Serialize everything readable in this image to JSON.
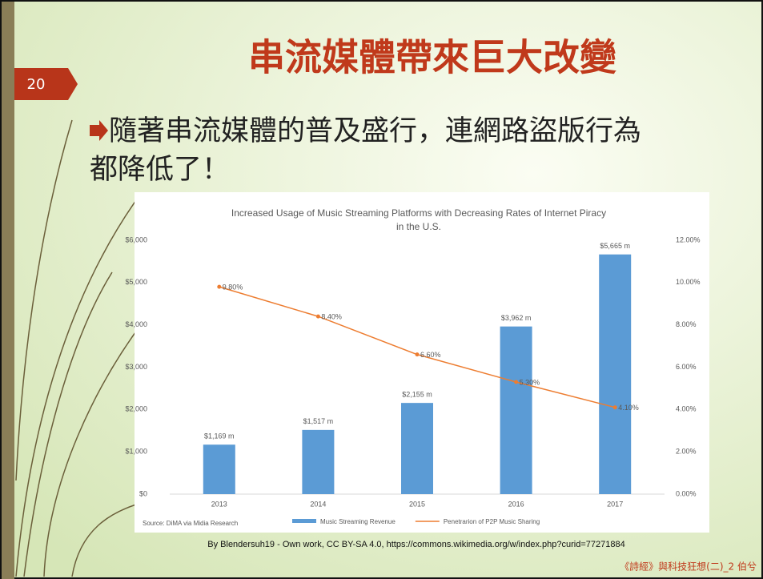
{
  "slide_number": "20",
  "title": "串流媒體帶來巨大改變",
  "bullet": [
    "隨著串流媒體的普及盛行，連網路盜版行為",
    "都降低了！"
  ],
  "chart_data": {
    "type": "bar",
    "title": [
      "Increased Usage of Music Streaming Platforms with Decreasing Rates of Internet Piracy",
      "in the U.S."
    ],
    "categories": [
      "2013",
      "2014",
      "2015",
      "2016",
      "2017"
    ],
    "series": [
      {
        "name": "Music Streaming Revenue",
        "type": "bar",
        "color": "#5b9bd5",
        "values": [
          1169,
          1517,
          2155,
          3962,
          5665
        ],
        "value_labels": [
          "$1,169 m",
          "$1,517 m",
          "$2,155 m",
          "$3,962 m",
          "$5,665 m"
        ]
      },
      {
        "name": "Penetrarion of P2P Music Sharing",
        "type": "line",
        "axis": "y2",
        "color": "#ed7d31",
        "values": [
          9.8,
          8.4,
          6.6,
          5.3,
          4.1
        ],
        "value_labels": [
          "9.80%",
          "8.40%",
          "6.60%",
          "5.30%",
          "4.10%"
        ]
      }
    ],
    "ylim": [
      0,
      6000
    ],
    "yticks": [
      {
        "value": 0,
        "label": "$0"
      },
      {
        "value": 1000,
        "label": "$1,000"
      },
      {
        "value": 2000,
        "label": "$2,000"
      },
      {
        "value": 3000,
        "label": "$3,000"
      },
      {
        "value": 4000,
        "label": "$4,000"
      },
      {
        "value": 5000,
        "label": "$5,000"
      },
      {
        "value": 6000,
        "label": "$6,000"
      }
    ],
    "y2lim": [
      0,
      12
    ],
    "y2ticks": [
      {
        "value": 0,
        "label": "0.00%"
      },
      {
        "value": 2,
        "label": "2.00%"
      },
      {
        "value": 4,
        "label": "4.00%"
      },
      {
        "value": 6,
        "label": "6.00%"
      },
      {
        "value": 8,
        "label": "8.00%"
      },
      {
        "value": 10,
        "label": "10.00%"
      },
      {
        "value": 12,
        "label": "12.00%"
      }
    ],
    "source": "Source: DiMA via Midia Research"
  },
  "credit": "By Blendersuh19 - Own work, CC BY-SA 4.0, https://commons.wikimedia.org/w/index.php?curid=77271884",
  "footer": "《詩經》與科技狂想(二)_2 伯兮"
}
